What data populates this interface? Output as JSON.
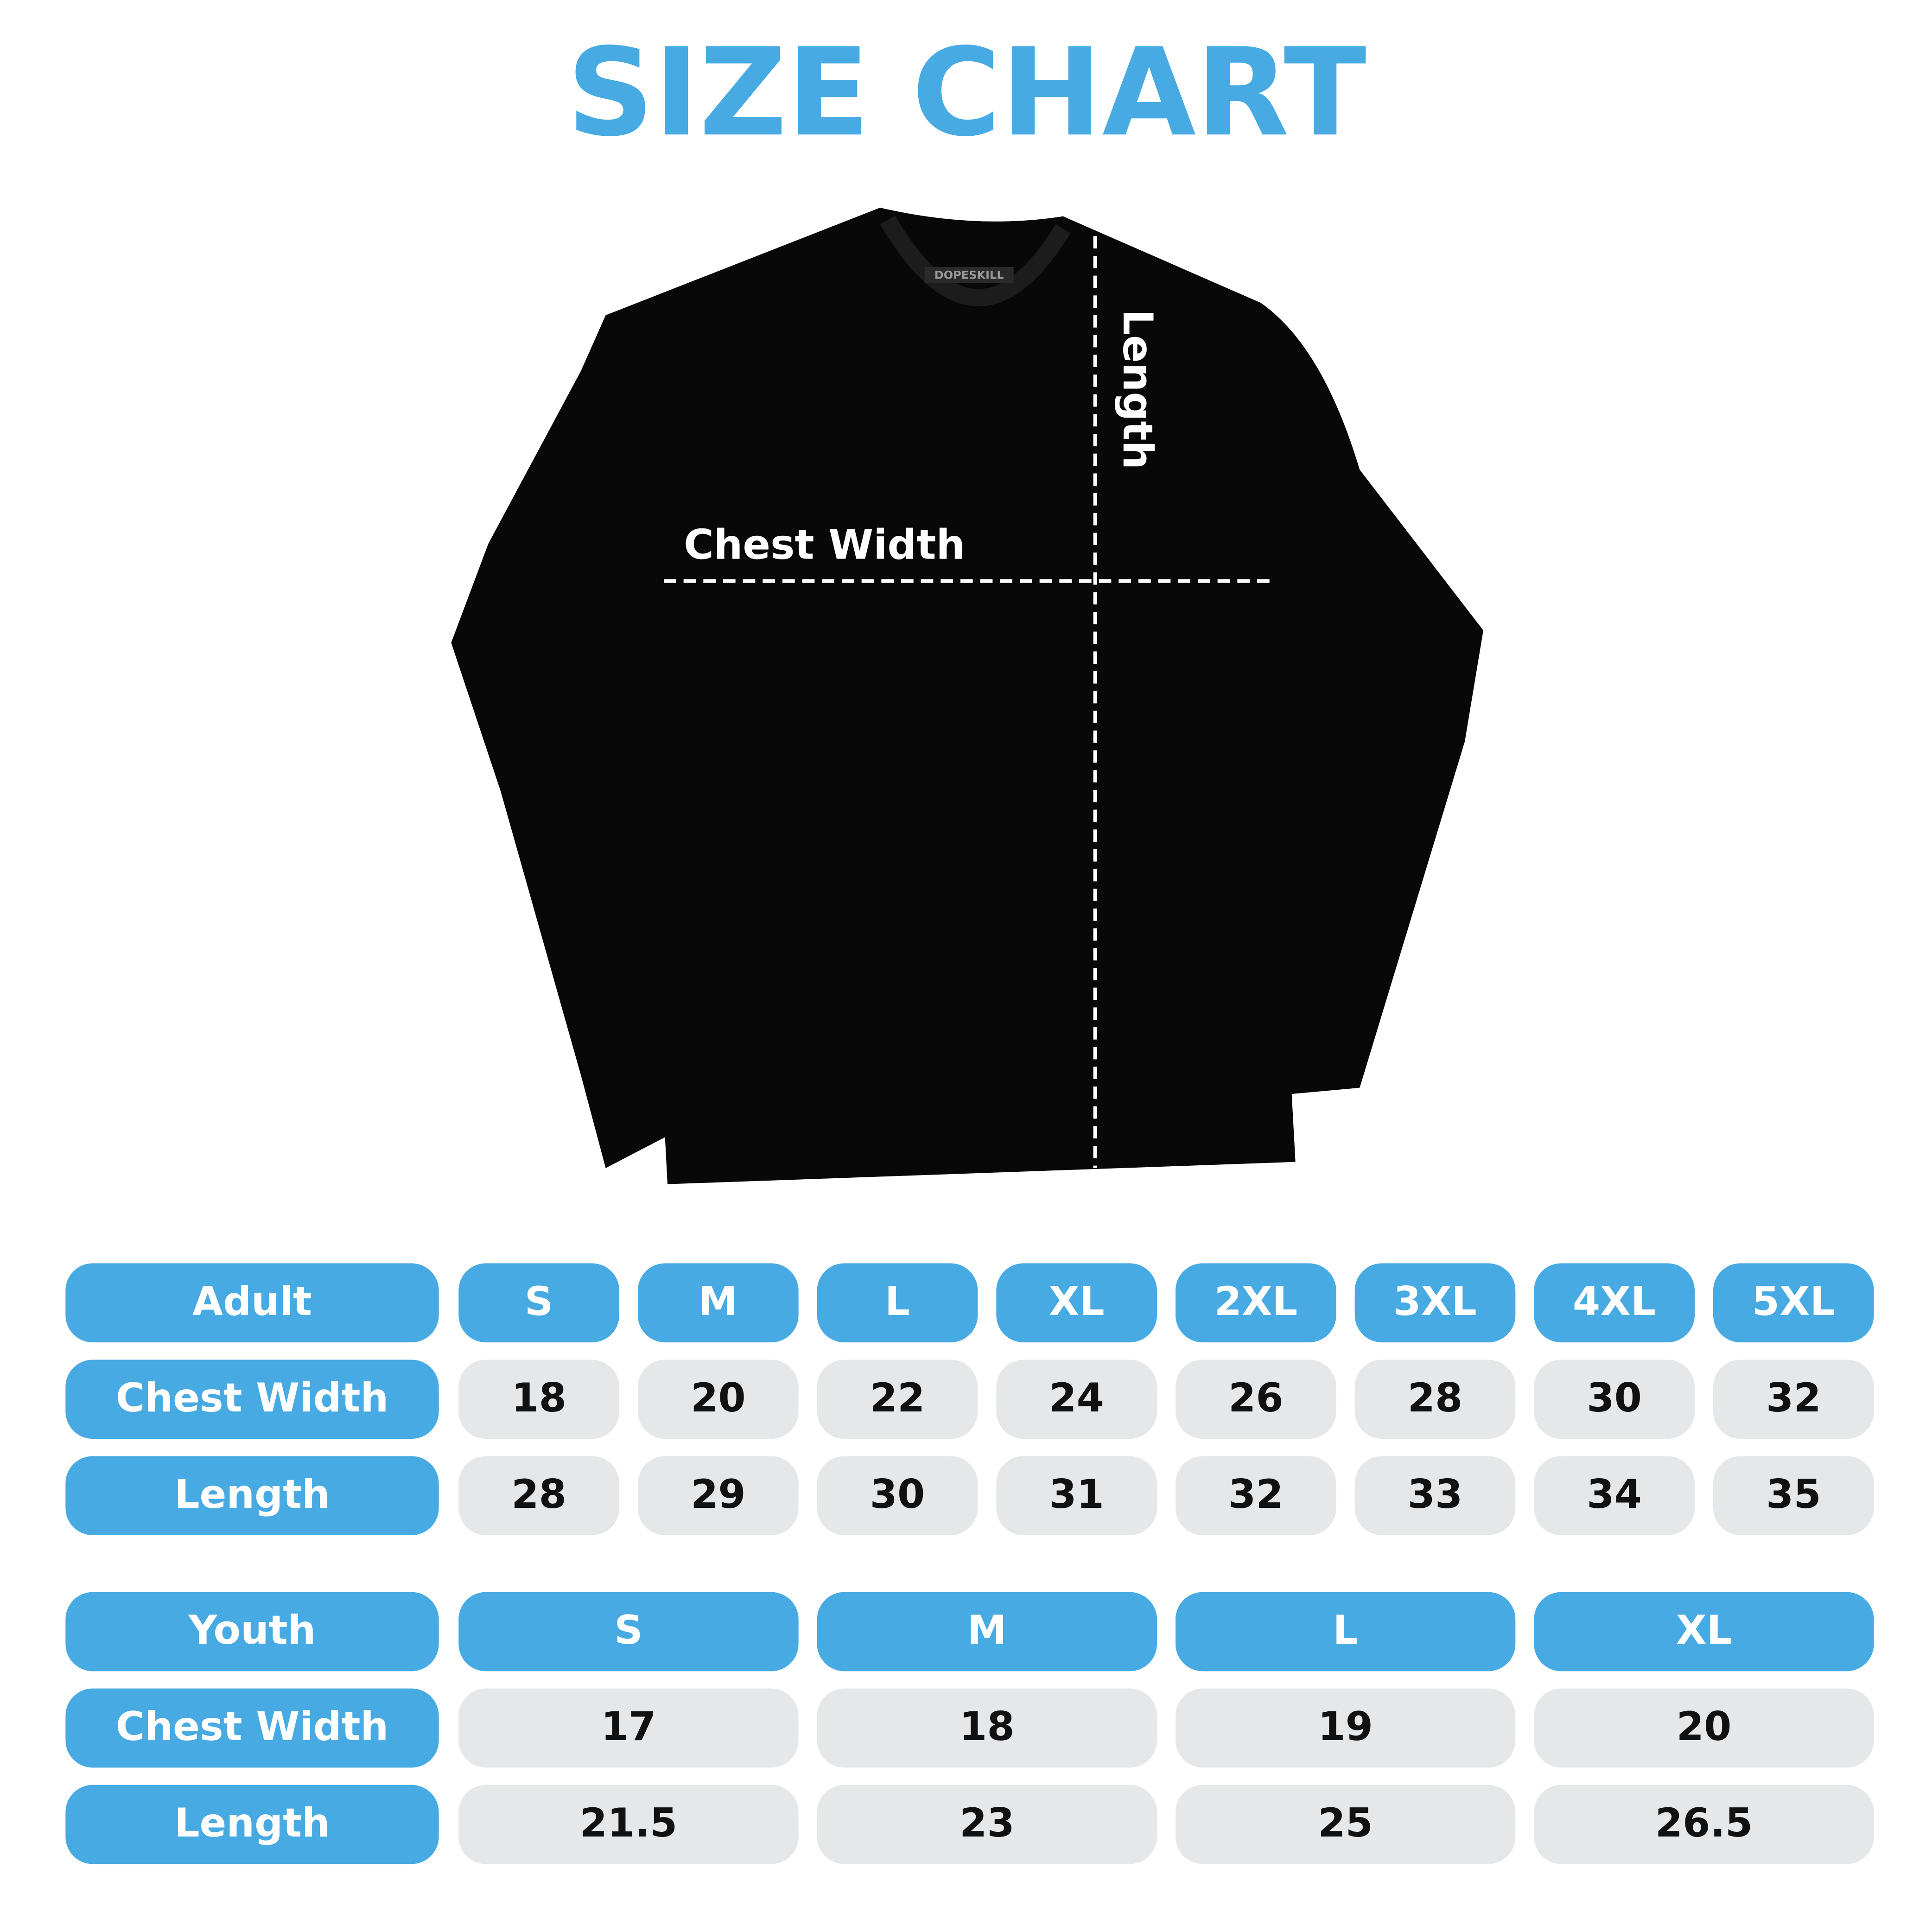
{
  "title": "SIZE CHART",
  "shirt": {
    "brand": "DOPESKILL",
    "chest_label": "Chest Width",
    "length_label": "Length"
  },
  "adult": {
    "header": [
      "Adult",
      "S",
      "M",
      "L",
      "XL",
      "2XL",
      "3XL",
      "4XL",
      "5XL"
    ],
    "rows": [
      [
        "Chest Width",
        18,
        20,
        22,
        24,
        26,
        28,
        30,
        32
      ],
      [
        "Length",
        28,
        29,
        30,
        31,
        32,
        33,
        34,
        35
      ]
    ]
  },
  "youth": {
    "header": [
      "Youth",
      "S",
      "M",
      "L",
      "XL"
    ],
    "rows": [
      [
        "Chest Width",
        17,
        18,
        19,
        20
      ],
      [
        "Length",
        21.5,
        23,
        25,
        26.5
      ]
    ]
  }
}
